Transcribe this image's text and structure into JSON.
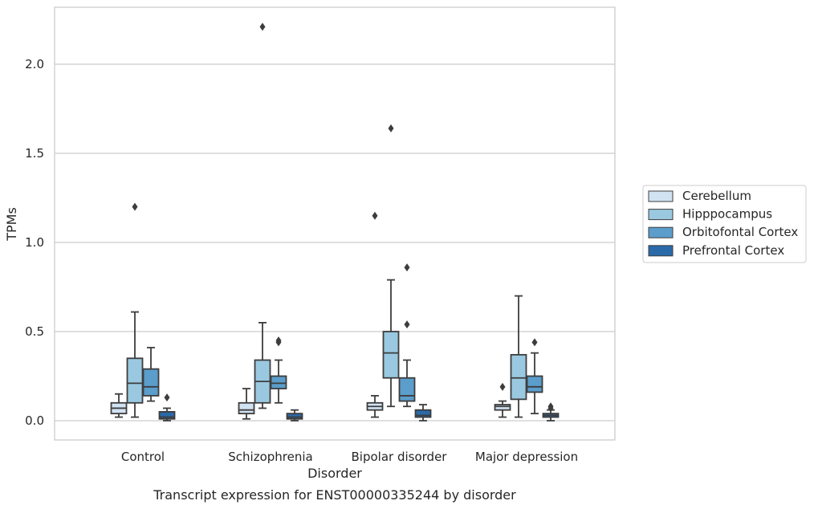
{
  "chart_data": {
    "type": "box",
    "title": "Transcript expression for ENST00000335244 by disorder",
    "xlabel": "Disorder",
    "ylabel": "TPMs",
    "ylim": [
      -0.11,
      2.34
    ],
    "yticks": [
      0.0,
      0.5,
      1.0,
      1.5,
      2.0
    ],
    "ytick_labels": [
      "0.0",
      "0.5",
      "1.0",
      "1.5",
      "2.0"
    ],
    "grid": "horizontal",
    "legend_position": "right",
    "categories": [
      "Control",
      "Schizophrenia",
      "Bipolar disorder",
      "Major depression"
    ],
    "series": [
      {
        "name": "Cerebellum",
        "color": "#d1e2f2",
        "boxes": [
          {
            "whislo": 0.02,
            "q1": 0.04,
            "med": 0.07,
            "q3": 0.1,
            "whishi": 0.15,
            "fliers": []
          },
          {
            "whislo": 0.01,
            "q1": 0.04,
            "med": 0.06,
            "q3": 0.1,
            "whishi": 0.18,
            "fliers": []
          },
          {
            "whislo": 0.02,
            "q1": 0.06,
            "med": 0.08,
            "q3": 0.1,
            "whishi": 0.14,
            "fliers": [
              1.15
            ]
          },
          {
            "whislo": 0.02,
            "q1": 0.06,
            "med": 0.08,
            "q3": 0.09,
            "whishi": 0.11,
            "fliers": [
              0.19
            ]
          }
        ]
      },
      {
        "name": "Hipppocampus",
        "color": "#9ac8e0",
        "boxes": [
          {
            "whislo": 0.02,
            "q1": 0.1,
            "med": 0.21,
            "q3": 0.35,
            "whishi": 0.61,
            "fliers": [
              1.2
            ]
          },
          {
            "whislo": 0.07,
            "q1": 0.1,
            "med": 0.22,
            "q3": 0.34,
            "whishi": 0.55,
            "fliers": [
              2.21
            ]
          },
          {
            "whislo": 0.08,
            "q1": 0.24,
            "med": 0.38,
            "q3": 0.5,
            "whishi": 0.79,
            "fliers": [
              1.64
            ]
          },
          {
            "whislo": 0.02,
            "q1": 0.12,
            "med": 0.24,
            "q3": 0.37,
            "whishi": 0.7,
            "fliers": []
          }
        ]
      },
      {
        "name": "Orbitofontal Cortex",
        "color": "#5b9dcb",
        "boxes": [
          {
            "whislo": 0.11,
            "q1": 0.14,
            "med": 0.19,
            "q3": 0.29,
            "whishi": 0.41,
            "fliers": []
          },
          {
            "whislo": 0.1,
            "q1": 0.18,
            "med": 0.21,
            "q3": 0.25,
            "whishi": 0.34,
            "fliers": [
              0.44,
              0.45
            ]
          },
          {
            "whislo": 0.08,
            "q1": 0.11,
            "med": 0.14,
            "q3": 0.24,
            "whishi": 0.34,
            "fliers": [
              0.54,
              0.86
            ]
          },
          {
            "whislo": 0.04,
            "q1": 0.16,
            "med": 0.19,
            "q3": 0.25,
            "whishi": 0.38,
            "fliers": [
              0.44
            ]
          }
        ]
      },
      {
        "name": "Prefrontal Cortex",
        "color": "#2a6aa8",
        "boxes": [
          {
            "whislo": 0.0,
            "q1": 0.01,
            "med": 0.02,
            "q3": 0.05,
            "whishi": 0.07,
            "fliers": [
              0.13
            ]
          },
          {
            "whislo": 0.0,
            "q1": 0.01,
            "med": 0.02,
            "q3": 0.04,
            "whishi": 0.06,
            "fliers": []
          },
          {
            "whislo": 0.0,
            "q1": 0.02,
            "med": 0.03,
            "q3": 0.06,
            "whishi": 0.09,
            "fliers": []
          },
          {
            "whislo": 0.0,
            "q1": 0.02,
            "med": 0.03,
            "q3": 0.04,
            "whishi": 0.06,
            "fliers": [
              0.07,
              0.08
            ]
          }
        ]
      }
    ]
  }
}
